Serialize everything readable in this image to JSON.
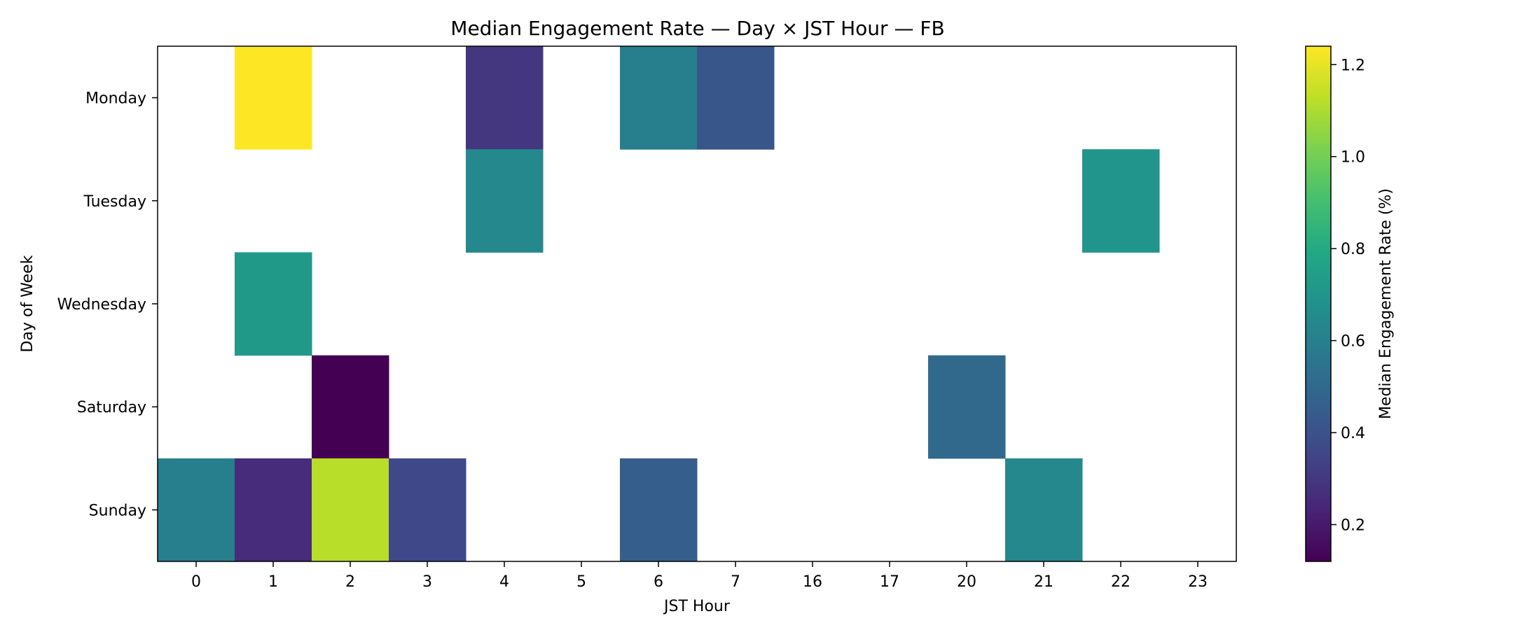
{
  "chart_data": {
    "type": "heatmap",
    "title": "Median Engagement Rate — Day × JST Hour — FB",
    "xlabel": "JST Hour",
    "ylabel": "Day of Week",
    "x_categories": [
      "0",
      "1",
      "2",
      "3",
      "4",
      "5",
      "6",
      "7",
      "16",
      "17",
      "20",
      "21",
      "22",
      "23"
    ],
    "y_categories": [
      "Monday",
      "Tuesday",
      "Wednesday",
      "Saturday",
      "Sunday"
    ],
    "values": [
      [
        null,
        1.24,
        null,
        null,
        0.3,
        null,
        0.6,
        0.42,
        null,
        null,
        null,
        null,
        null,
        null
      ],
      [
        null,
        null,
        null,
        null,
        0.64,
        null,
        null,
        null,
        null,
        null,
        null,
        null,
        0.7,
        null
      ],
      [
        null,
        0.72,
        null,
        null,
        null,
        null,
        null,
        null,
        null,
        null,
        null,
        null,
        null,
        null
      ],
      [
        null,
        null,
        0.12,
        null,
        null,
        null,
        null,
        null,
        null,
        null,
        0.5,
        null,
        null,
        null
      ],
      [
        0.6,
        0.26,
        1.12,
        0.36,
        null,
        null,
        0.45,
        null,
        null,
        null,
        null,
        0.64,
        null,
        null
      ]
    ],
    "colorbar": {
      "label": "Median Engagement Rate (%)",
      "min": 0.12,
      "max": 1.24,
      "ticks": [
        "0.2",
        "0.4",
        "0.6",
        "0.8",
        "1.0",
        "1.2"
      ],
      "colormap": "viridis"
    },
    "grid": false
  }
}
